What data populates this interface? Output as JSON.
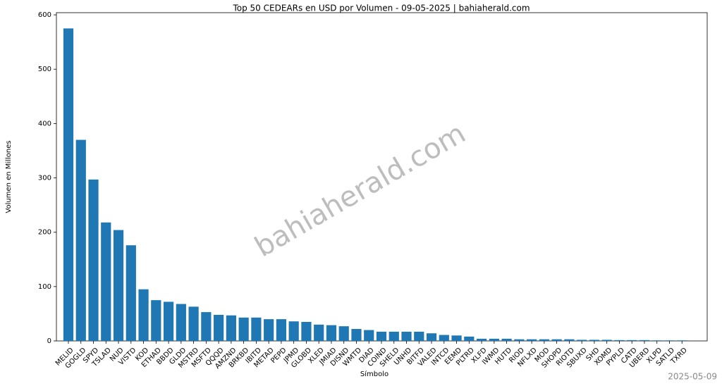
{
  "chart_data": {
    "type": "bar",
    "title": "Top 50 CEDEARs en USD por Volumen - 09-05-2025 | bahiaherald.com",
    "x_label": "Símbolo",
    "y_label": "Volumen en Millones",
    "watermark": "bahiaherald.com",
    "footer": "2025-05-09",
    "color": "#1f77b4",
    "categories": [
      "MELID",
      "GOGLD",
      "SPYD",
      "TSLAD",
      "NUD",
      "VISTD",
      "KOD",
      "ETHAD",
      "BBDD",
      "GLDD",
      "MSTRD",
      "MSFTD",
      "QQQD",
      "AMZND",
      "BRKBD",
      "IBITD",
      "METAD",
      "PEPD",
      "JPMD",
      "GLOBD",
      "XLED",
      "JMIAD",
      "DISND",
      "WMTD",
      "DIAD",
      "COIND",
      "SHELD",
      "UNHD",
      "BITFD",
      "VALED",
      "INTCD",
      "EEMD",
      "PLTRD",
      "XLFD",
      "IWMD",
      "HUTD",
      "RIOD",
      "NFLXD",
      "MOD",
      "SHOPD",
      "RIOTD",
      "SBUXD",
      "SHD",
      "XOMD",
      "PYPLD",
      "CATD",
      "UBERD",
      "XLPD",
      "SATLD",
      "TXRD"
    ],
    "values": [
      575,
      370,
      297,
      218,
      204,
      176,
      95,
      75,
      72,
      68,
      63,
      53,
      48,
      47,
      43,
      43,
      40,
      40,
      36,
      35,
      30,
      29,
      27,
      22,
      20,
      17,
      17,
      17,
      17,
      14,
      11,
      10,
      8,
      4,
      4,
      4,
      3,
      3,
      3,
      3,
      3,
      2,
      2,
      2,
      1.5,
      1.5,
      1.5,
      1,
      1,
      1
    ],
    "ylim": [
      0,
      604
    ],
    "yticks": [
      0,
      100,
      200,
      300,
      400,
      500,
      600
    ],
    "grid": false
  }
}
